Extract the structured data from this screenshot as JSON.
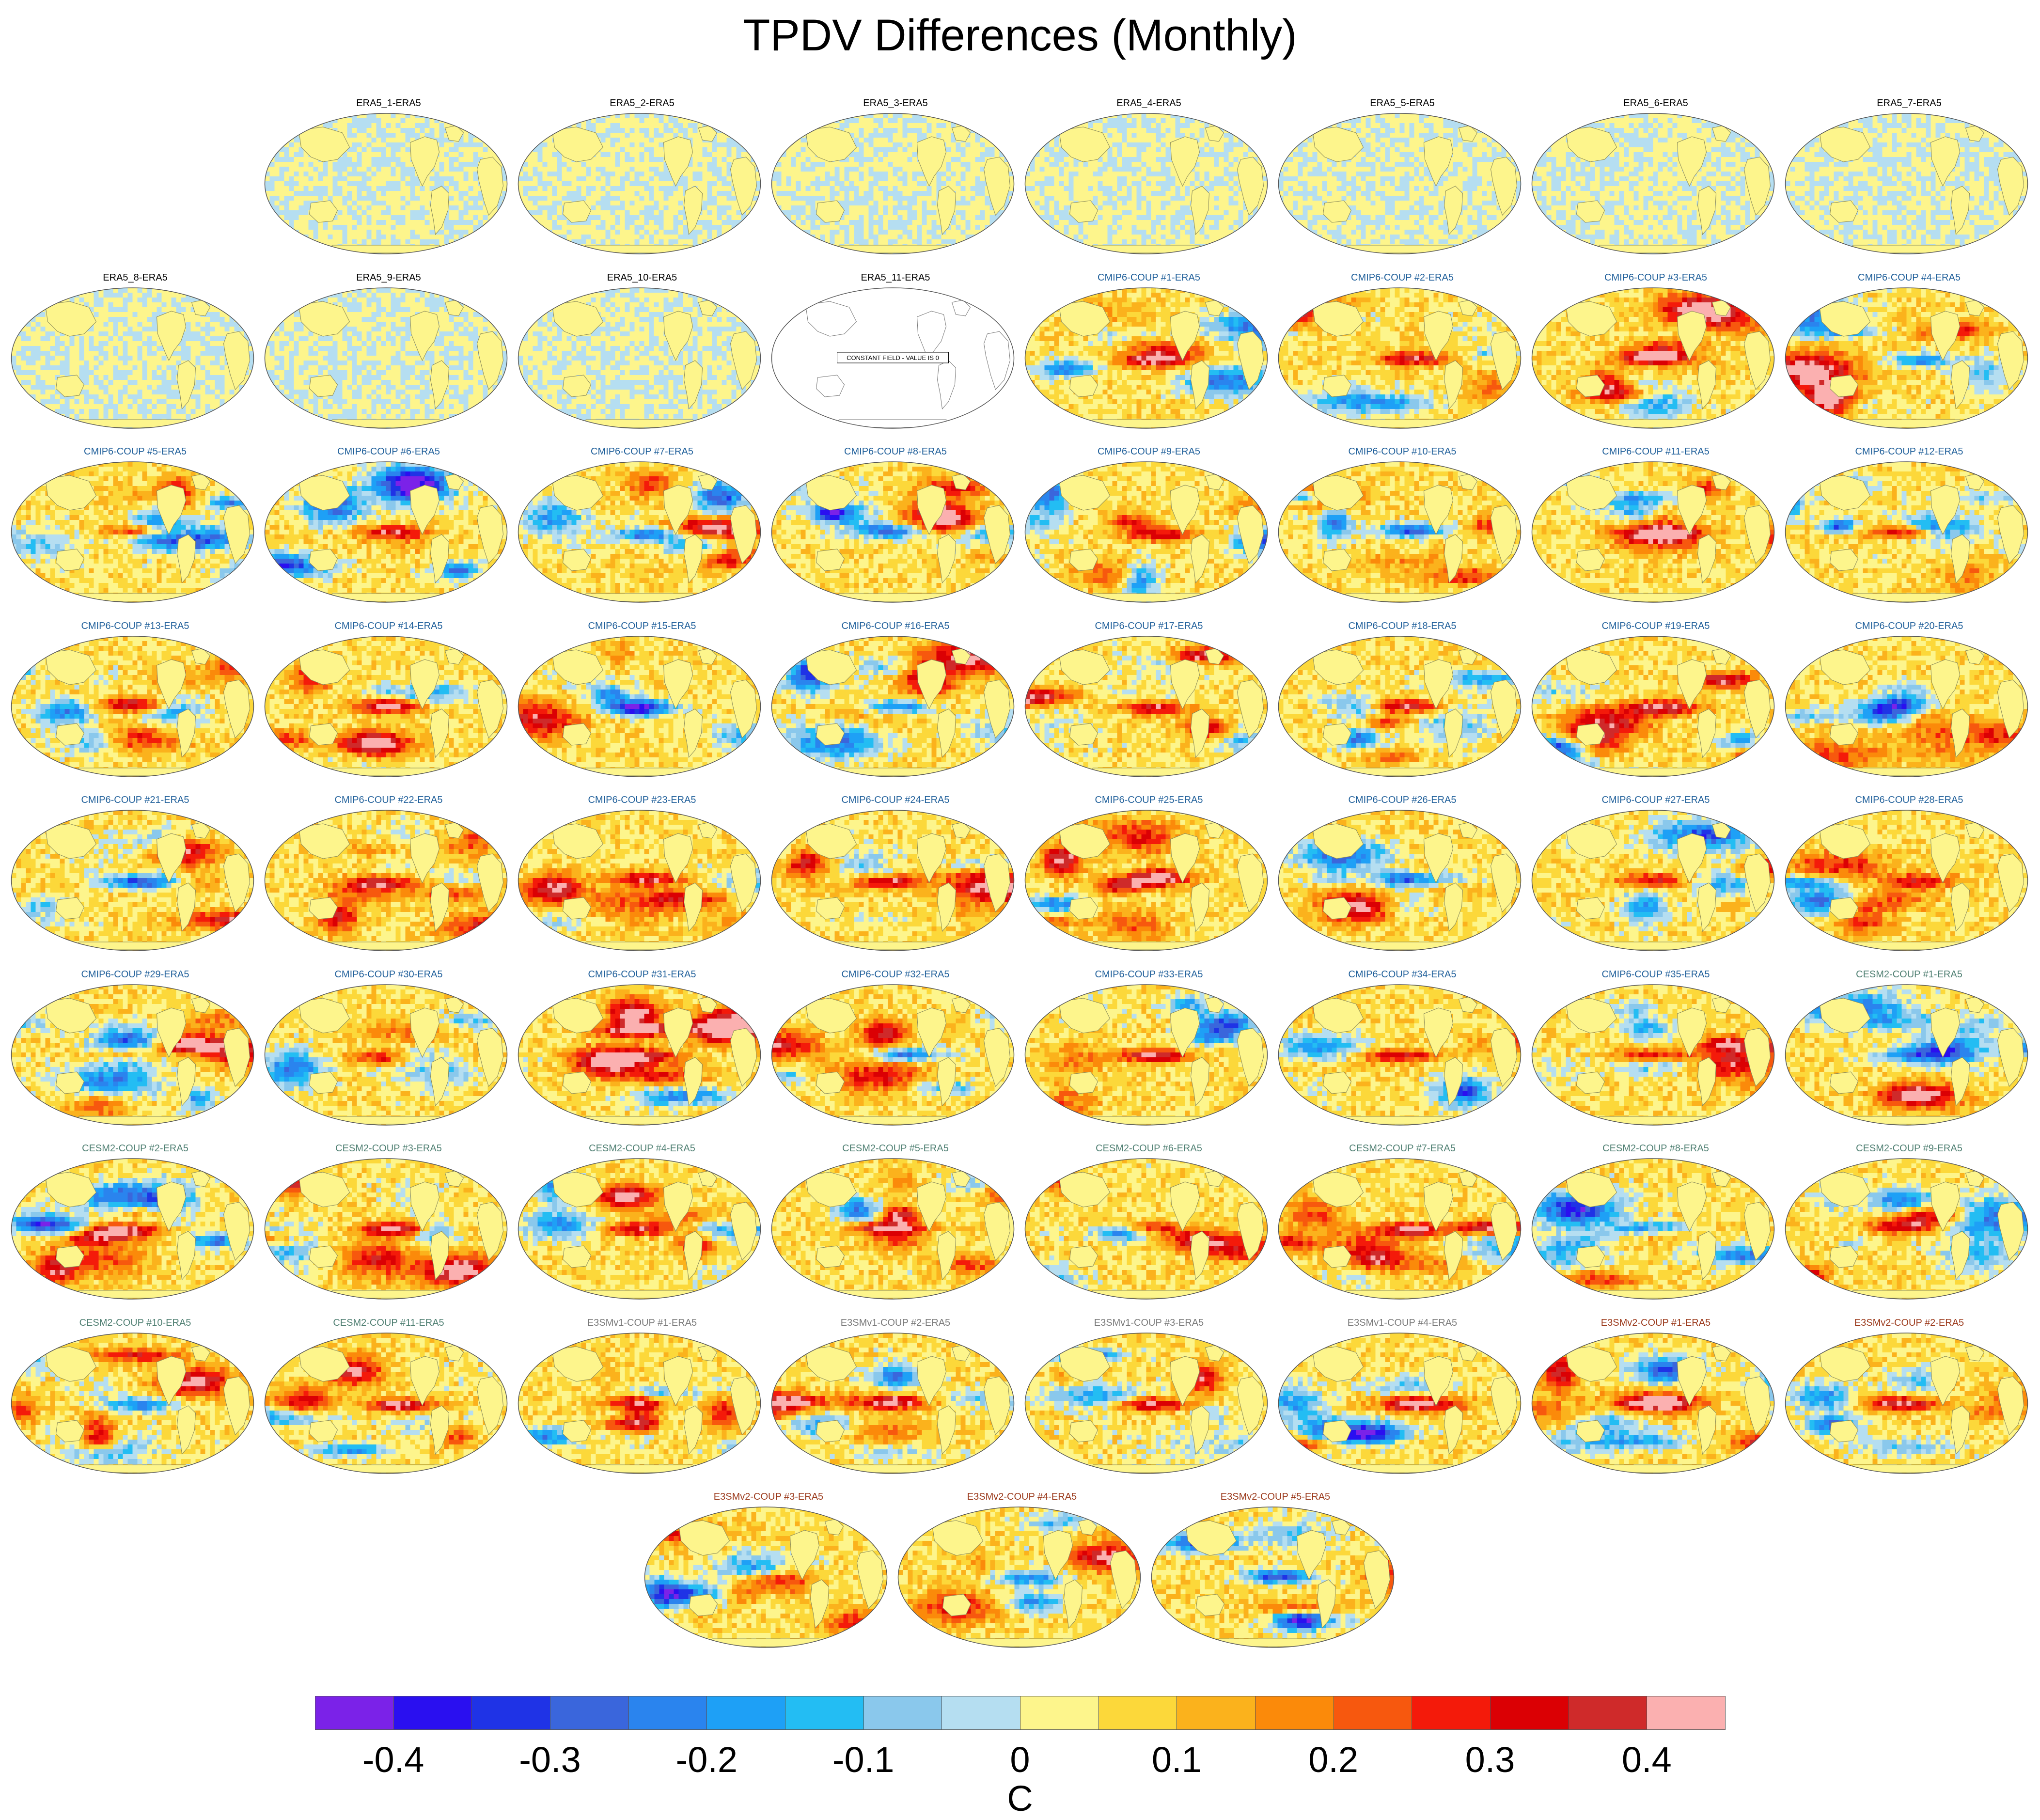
{
  "title": "TPDV Differences (Monthly)",
  "chart_data": {
    "type": "heatmap",
    "projection": "global map (Robinson-like)",
    "title": "TPDV Differences (Monthly)",
    "panels": [
      {
        "label": "ERA5_1-ERA5",
        "group": "era5"
      },
      {
        "label": "ERA5_2-ERA5",
        "group": "era5"
      },
      {
        "label": "ERA5_3-ERA5",
        "group": "era5"
      },
      {
        "label": "ERA5_4-ERA5",
        "group": "era5"
      },
      {
        "label": "ERA5_5-ERA5",
        "group": "era5"
      },
      {
        "label": "ERA5_6-ERA5",
        "group": "era5"
      },
      {
        "label": "ERA5_7-ERA5",
        "group": "era5"
      },
      {
        "label": "ERA5_8-ERA5",
        "group": "era5"
      },
      {
        "label": "ERA5_9-ERA5",
        "group": "era5"
      },
      {
        "label": "ERA5_10-ERA5",
        "group": "era5"
      },
      {
        "label": "ERA5_11-ERA5",
        "group": "era5",
        "constant": true,
        "note": "CONSTANT FIELD - VALUE IS 0"
      },
      {
        "label": "CMIP6-COUP #1-ERA5",
        "group": "cmip6"
      },
      {
        "label": "CMIP6-COUP #2-ERA5",
        "group": "cmip6"
      },
      {
        "label": "CMIP6-COUP #3-ERA5",
        "group": "cmip6"
      },
      {
        "label": "CMIP6-COUP #4-ERA5",
        "group": "cmip6"
      },
      {
        "label": "CMIP6-COUP #5-ERA5",
        "group": "cmip6"
      },
      {
        "label": "CMIP6-COUP #6-ERA5",
        "group": "cmip6"
      },
      {
        "label": "CMIP6-COUP #7-ERA5",
        "group": "cmip6"
      },
      {
        "label": "CMIP6-COUP #8-ERA5",
        "group": "cmip6"
      },
      {
        "label": "CMIP6-COUP #9-ERA5",
        "group": "cmip6"
      },
      {
        "label": "CMIP6-COUP #10-ERA5",
        "group": "cmip6"
      },
      {
        "label": "CMIP6-COUP #11-ERA5",
        "group": "cmip6"
      },
      {
        "label": "CMIP6-COUP #12-ERA5",
        "group": "cmip6"
      },
      {
        "label": "CMIP6-COUP #13-ERA5",
        "group": "cmip6"
      },
      {
        "label": "CMIP6-COUP #14-ERA5",
        "group": "cmip6"
      },
      {
        "label": "CMIP6-COUP #15-ERA5",
        "group": "cmip6"
      },
      {
        "label": "CMIP6-COUP #16-ERA5",
        "group": "cmip6"
      },
      {
        "label": "CMIP6-COUP #17-ERA5",
        "group": "cmip6"
      },
      {
        "label": "CMIP6-COUP #18-ERA5",
        "group": "cmip6"
      },
      {
        "label": "CMIP6-COUP #19-ERA5",
        "group": "cmip6"
      },
      {
        "label": "CMIP6-COUP #20-ERA5",
        "group": "cmip6"
      },
      {
        "label": "CMIP6-COUP #21-ERA5",
        "group": "cmip6"
      },
      {
        "label": "CMIP6-COUP #22-ERA5",
        "group": "cmip6"
      },
      {
        "label": "CMIP6-COUP #23-ERA5",
        "group": "cmip6"
      },
      {
        "label": "CMIP6-COUP #24-ERA5",
        "group": "cmip6"
      },
      {
        "label": "CMIP6-COUP #25-ERA5",
        "group": "cmip6"
      },
      {
        "label": "CMIP6-COUP #26-ERA5",
        "group": "cmip6"
      },
      {
        "label": "CMIP6-COUP #27-ERA5",
        "group": "cmip6"
      },
      {
        "label": "CMIP6-COUP #28-ERA5",
        "group": "cmip6"
      },
      {
        "label": "CMIP6-COUP #29-ERA5",
        "group": "cmip6"
      },
      {
        "label": "CMIP6-COUP #30-ERA5",
        "group": "cmip6"
      },
      {
        "label": "CMIP6-COUP #31-ERA5",
        "group": "cmip6"
      },
      {
        "label": "CMIP6-COUP #32-ERA5",
        "group": "cmip6"
      },
      {
        "label": "CMIP6-COUP #33-ERA5",
        "group": "cmip6"
      },
      {
        "label": "CMIP6-COUP #34-ERA5",
        "group": "cmip6"
      },
      {
        "label": "CMIP6-COUP #35-ERA5",
        "group": "cmip6"
      },
      {
        "label": "CESM2-COUP #1-ERA5",
        "group": "cesm2"
      },
      {
        "label": "CESM2-COUP #2-ERA5",
        "group": "cesm2"
      },
      {
        "label": "CESM2-COUP #3-ERA5",
        "group": "cesm2"
      },
      {
        "label": "CESM2-COUP #4-ERA5",
        "group": "cesm2"
      },
      {
        "label": "CESM2-COUP #5-ERA5",
        "group": "cesm2"
      },
      {
        "label": "CESM2-COUP #6-ERA5",
        "group": "cesm2"
      },
      {
        "label": "CESM2-COUP #7-ERA5",
        "group": "cesm2"
      },
      {
        "label": "CESM2-COUP #8-ERA5",
        "group": "cesm2"
      },
      {
        "label": "CESM2-COUP #9-ERA5",
        "group": "cesm2"
      },
      {
        "label": "CESM2-COUP #10-ERA5",
        "group": "cesm2"
      },
      {
        "label": "CESM2-COUP #11-ERA5",
        "group": "cesm2"
      },
      {
        "label": "E3SMv1-COUP #1-ERA5",
        "group": "e3smv1"
      },
      {
        "label": "E3SMv1-COUP #2-ERA5",
        "group": "e3smv1"
      },
      {
        "label": "E3SMv1-COUP #3-ERA5",
        "group": "e3smv1"
      },
      {
        "label": "E3SMv1-COUP #4-ERA5",
        "group": "e3smv1"
      },
      {
        "label": "E3SMv2-COUP #1-ERA5",
        "group": "e3smv2"
      },
      {
        "label": "E3SMv2-COUP #2-ERA5",
        "group": "e3smv2"
      },
      {
        "label": "E3SMv2-COUP #3-ERA5",
        "group": "e3smv2"
      },
      {
        "label": "E3SMv2-COUP #4-ERA5",
        "group": "e3smv2"
      },
      {
        "label": "E3SMv2-COUP #5-ERA5",
        "group": "e3smv2"
      }
    ],
    "colorbar": {
      "unit": "C",
      "range": [
        -0.45,
        0.45
      ],
      "step": 0.05,
      "tick_labels": [
        "-0.4",
        "-0.3",
        "-0.2",
        "-0.1",
        "0",
        "0.1",
        "0.2",
        "0.3",
        "0.4"
      ],
      "tick_values": [
        -0.4,
        -0.3,
        -0.2,
        -0.1,
        0,
        0.1,
        0.2,
        0.3,
        0.4
      ],
      "colors": [
        "#7b22e8",
        "#2a0ff0",
        "#1f33e6",
        "#3a66dc",
        "#2a84ee",
        "#1ea0f6",
        "#23bdf3",
        "#8ac8ec",
        "#b5def1",
        "#fdf58c",
        "#fcd83a",
        "#fbb21c",
        "#fb8a0a",
        "#f7580e",
        "#f41a0a",
        "#db0004",
        "#cf2a2a",
        "#fbb0b0"
      ]
    }
  }
}
